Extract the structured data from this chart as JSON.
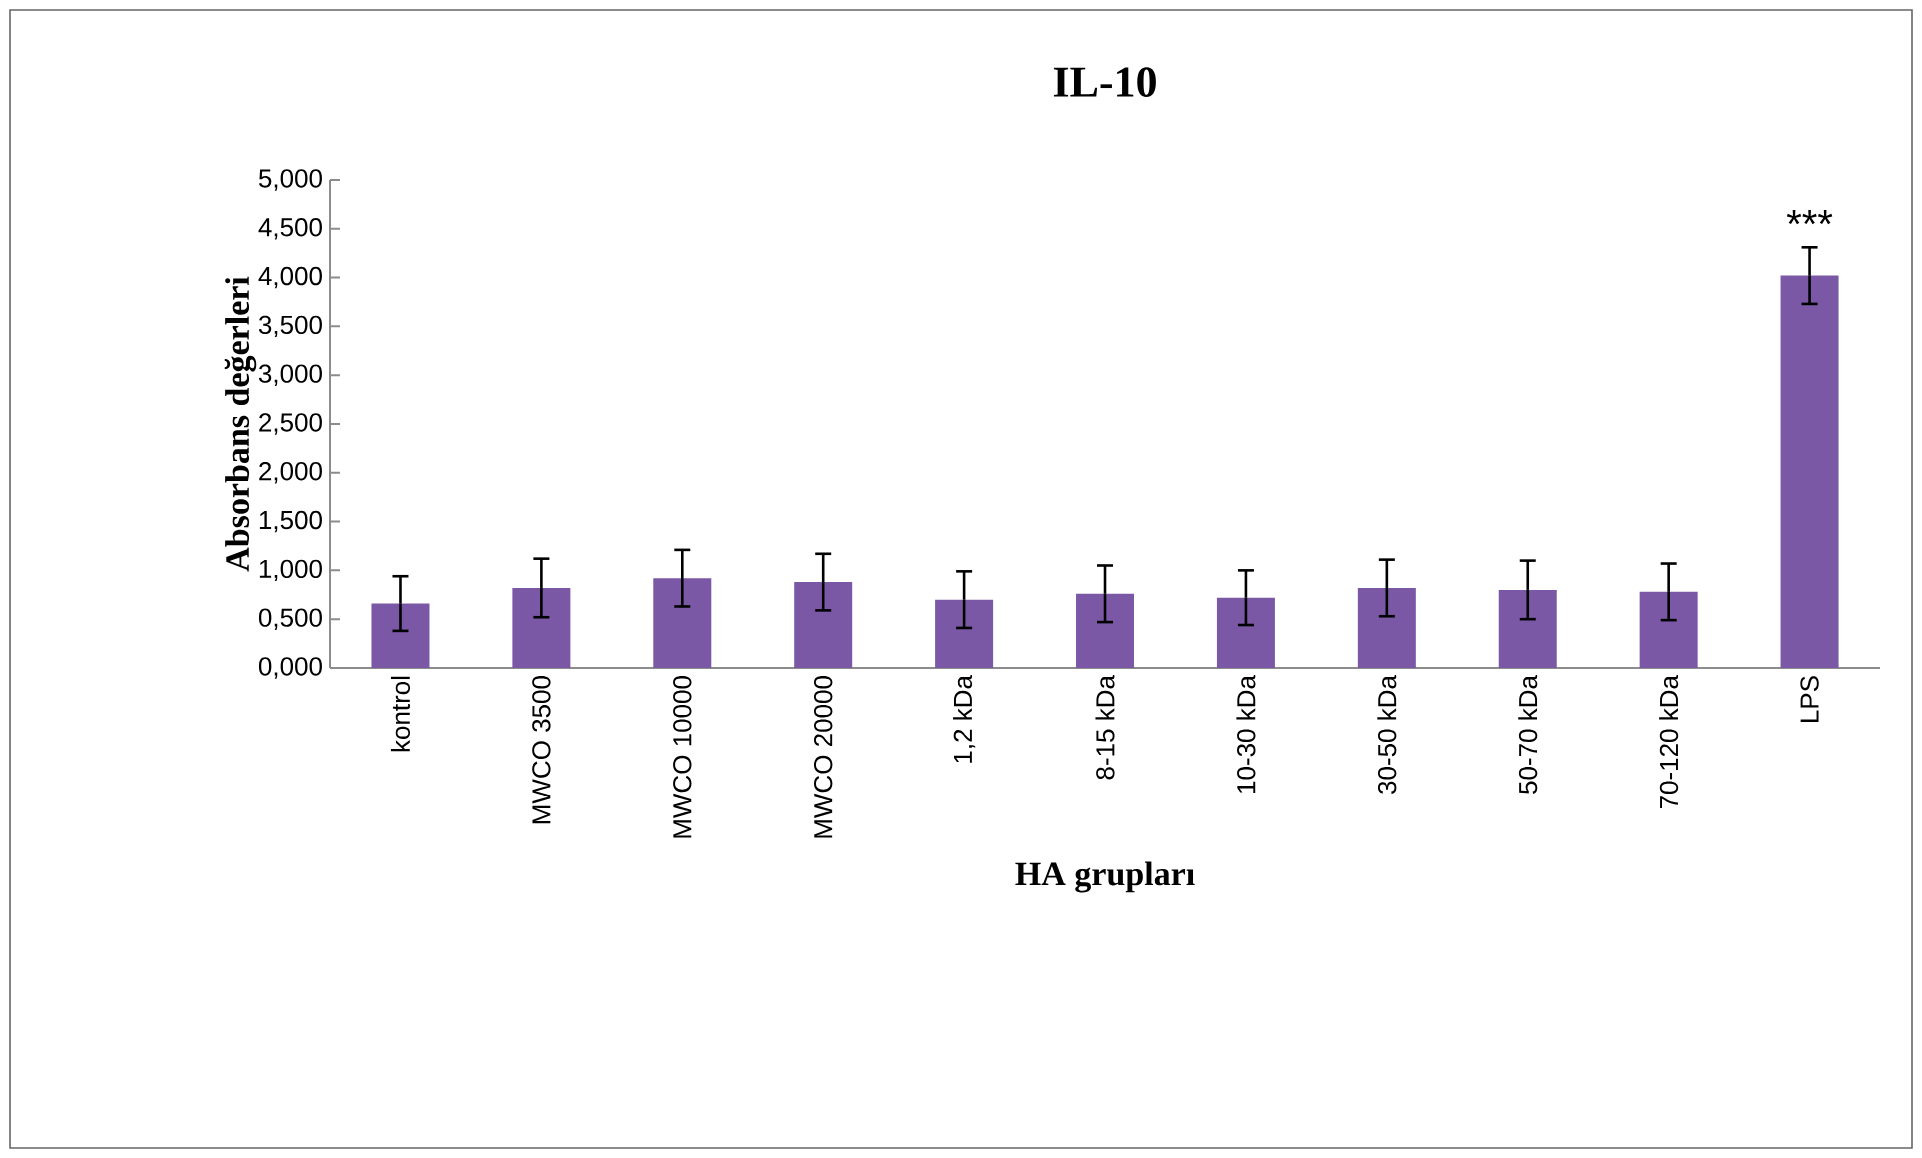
{
  "chart_data": {
    "type": "bar",
    "title": "IL-10",
    "xlabel": "HA grupları",
    "ylabel": "Absorbans değerleri",
    "categories": [
      "kontrol",
      "MWCO 3500",
      "MWCO 10000",
      "MWCO 20000",
      "1,2 kDa",
      "8-15 kDa",
      "10-30 kDa",
      "30-50 kDa",
      "50-70 kDa",
      "70-120 kDa",
      "LPS"
    ],
    "values": [
      0.66,
      0.82,
      0.92,
      0.88,
      0.7,
      0.76,
      0.72,
      0.82,
      0.8,
      0.78,
      4.02
    ],
    "errors": [
      0.28,
      0.3,
      0.29,
      0.29,
      0.29,
      0.29,
      0.28,
      0.29,
      0.3,
      0.29,
      0.29
    ],
    "color": "#7b58a6",
    "ylim": [
      0,
      5
    ],
    "yticks": [
      {
        "value": 0,
        "label": "0,000"
      },
      {
        "value": 0.5,
        "label": "0,500"
      },
      {
        "value": 1,
        "label": "1,000"
      },
      {
        "value": 1.5,
        "label": "1,500"
      },
      {
        "value": 2,
        "label": "2,000"
      },
      {
        "value": 2.5,
        "label": "2,500"
      },
      {
        "value": 3,
        "label": "3,000"
      },
      {
        "value": 3.5,
        "label": "3,500"
      },
      {
        "value": 4,
        "label": "4,000"
      },
      {
        "value": 4.5,
        "label": "4,500"
      },
      {
        "value": 5,
        "label": "5,000"
      }
    ],
    "annotations": [
      "***"
    ]
  }
}
